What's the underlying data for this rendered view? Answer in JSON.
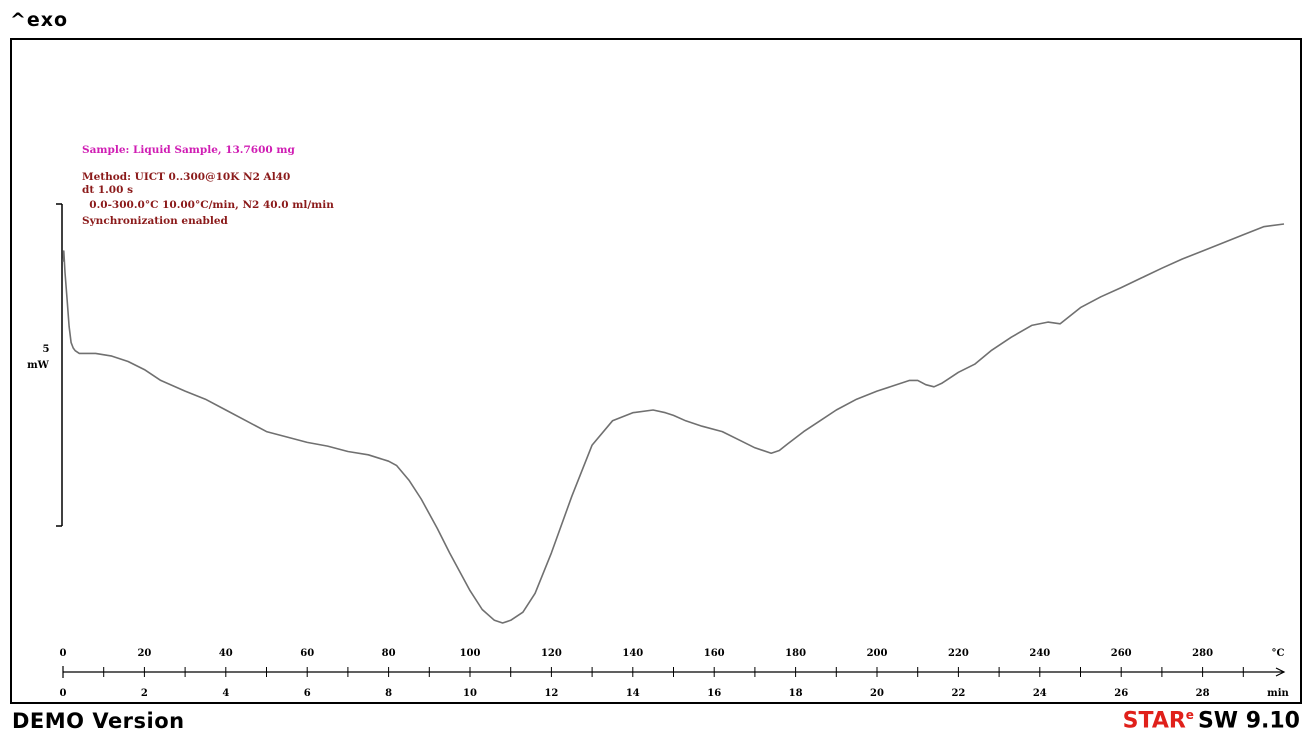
{
  "header": {
    "exo_label": "^exo"
  },
  "footer": {
    "demo_label": "DEMO Version",
    "brand": "STAR",
    "brand_mark": "e",
    "software": "SW 9.10"
  },
  "info": {
    "sample": "Sample: Liquid Sample, 13.7600 mg",
    "method": "Method: UICT 0..300@10K N2 Al40",
    "dt": "dt 1.00 s",
    "segment": "  0.0-300.0°C 10.00°C/min, N2 40.0 ml/min",
    "sync": "Synchronization enabled",
    "sample_color": "#d01eb4",
    "method_color": "#8b1a1a"
  },
  "chart_data": {
    "type": "line",
    "scale_bar": {
      "value": "5",
      "unit": "mW"
    },
    "x_temperature": {
      "unit": "°C",
      "ticks": [
        0,
        20,
        40,
        60,
        80,
        100,
        120,
        140,
        160,
        180,
        200,
        220,
        240,
        260,
        280
      ]
    },
    "x_time": {
      "unit": "min",
      "ticks": [
        0,
        2,
        4,
        6,
        8,
        10,
        12,
        14,
        16,
        18,
        20,
        22,
        24,
        26,
        28
      ]
    },
    "xlim": [
      0,
      300
    ],
    "ylim": [
      -5.1,
      2.3
    ],
    "series": [
      {
        "color": "#707070",
        "x": [
          0,
          0.2,
          0.5,
          1,
          1.5,
          2,
          2.5,
          3,
          4,
          5,
          8,
          12,
          16,
          20,
          24,
          30,
          35,
          40,
          45,
          50,
          55,
          60,
          65,
          70,
          75,
          80,
          82,
          85,
          88,
          92,
          95,
          100,
          103,
          106,
          108,
          110,
          113,
          116,
          120,
          125,
          130,
          135,
          140,
          145,
          148,
          150,
          153,
          157,
          162,
          166,
          170,
          174,
          176,
          178,
          182,
          186,
          190,
          195,
          200,
          204,
          208,
          210,
          212,
          214,
          216,
          218,
          220,
          224,
          228,
          233,
          238,
          242,
          245,
          250,
          255,
          260,
          265,
          270,
          275,
          280,
          285,
          290,
          295,
          300
        ],
        "y": [
          1.6,
          1.8,
          1.4,
          0.9,
          0.4,
          0.1,
          0.0,
          -0.05,
          -0.1,
          -0.1,
          -0.1,
          -0.15,
          -0.25,
          -0.4,
          -0.6,
          -0.8,
          -0.95,
          -1.15,
          -1.35,
          -1.55,
          -1.65,
          -1.75,
          -1.82,
          -1.92,
          -1.98,
          -2.1,
          -2.18,
          -2.45,
          -2.8,
          -3.35,
          -3.8,
          -4.5,
          -4.85,
          -5.05,
          -5.1,
          -5.05,
          -4.9,
          -4.55,
          -3.8,
          -2.75,
          -1.8,
          -1.35,
          -1.2,
          -1.15,
          -1.2,
          -1.25,
          -1.35,
          -1.45,
          -1.55,
          -1.7,
          -1.85,
          -1.95,
          -1.9,
          -1.78,
          -1.55,
          -1.35,
          -1.15,
          -0.95,
          -0.8,
          -0.7,
          -0.6,
          -0.6,
          -0.68,
          -0.72,
          -0.65,
          -0.55,
          -0.45,
          -0.3,
          -0.05,
          0.2,
          0.42,
          0.48,
          0.45,
          0.75,
          0.95,
          1.12,
          1.3,
          1.48,
          1.65,
          1.8,
          1.95,
          2.1,
          2.25,
          2.3
        ]
      }
    ]
  }
}
